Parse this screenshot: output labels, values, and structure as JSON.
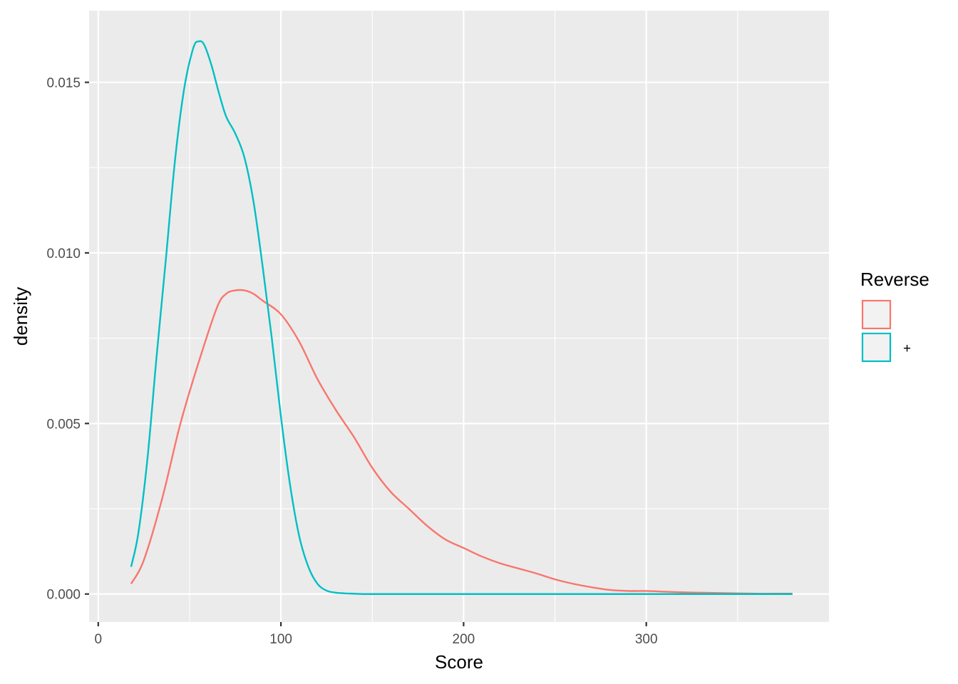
{
  "chart_data": {
    "type": "line",
    "title": "",
    "xlabel": "Score",
    "ylabel": "density",
    "xlim": [
      -5,
      400
    ],
    "ylim": [
      -0.00082,
      0.0171
    ],
    "x_ticks": [
      0,
      100,
      200,
      300
    ],
    "x_tick_labels": [
      "0",
      "100",
      "200",
      "300"
    ],
    "y_ticks": [
      0.0,
      0.005,
      0.01,
      0.015
    ],
    "y_tick_labels": [
      "0.000",
      "0.005",
      "0.010",
      "0.015"
    ],
    "grid": true,
    "background": "#ebebeb",
    "legend": {
      "title": "Reverse",
      "position": "right",
      "entries": [
        {
          "label": "",
          "color": "#f8766d"
        },
        {
          "label": "+",
          "color": "#00bfc4"
        }
      ]
    },
    "series": [
      {
        "color": "#f8766d",
        "x": [
          18,
          25,
          35,
          45,
          55,
          65,
          70,
          75,
          80,
          85,
          90,
          100,
          110,
          120,
          130,
          140,
          150,
          160,
          170,
          180,
          190,
          200,
          210,
          220,
          230,
          240,
          250,
          260,
          270,
          280,
          290,
          300,
          310,
          320,
          330,
          340,
          350,
          360,
          370,
          380
        ],
        "y": [
          0.0003,
          0.001,
          0.0028,
          0.005,
          0.0068,
          0.0084,
          0.0088,
          0.0089,
          0.0089,
          0.0088,
          0.0086,
          0.0082,
          0.0074,
          0.0063,
          0.0054,
          0.0046,
          0.0037,
          0.003,
          0.0025,
          0.002,
          0.0016,
          0.00135,
          0.0011,
          0.0009,
          0.00075,
          0.0006,
          0.00043,
          0.0003,
          0.0002,
          0.00012,
          9e-05,
          9e-05,
          7e-05,
          5e-05,
          4e-05,
          3e-05,
          2e-05,
          1e-05,
          1e-05,
          1e-05
        ]
      },
      {
        "color": "#00bfc4",
        "x": [
          18,
          22,
          27,
          32,
          37,
          42,
          47,
          52,
          55,
          58,
          62,
          66,
          70,
          75,
          80,
          85,
          90,
          95,
          100,
          105,
          110,
          115,
          120,
          125,
          130,
          135,
          140,
          145,
          150,
          160,
          180,
          200,
          250,
          300,
          350,
          380
        ],
        "y": [
          0.0008,
          0.0018,
          0.004,
          0.007,
          0.0098,
          0.0127,
          0.0148,
          0.016,
          0.0162,
          0.0161,
          0.0155,
          0.0147,
          0.014,
          0.0135,
          0.0128,
          0.0115,
          0.0096,
          0.0075,
          0.0052,
          0.0032,
          0.0017,
          0.0008,
          0.0003,
          0.0001,
          4e-05,
          2e-05,
          1e-05,
          0.0,
          0.0,
          0.0,
          0.0,
          0.0,
          0.0,
          0.0,
          0.0,
          0.0
        ]
      }
    ]
  }
}
